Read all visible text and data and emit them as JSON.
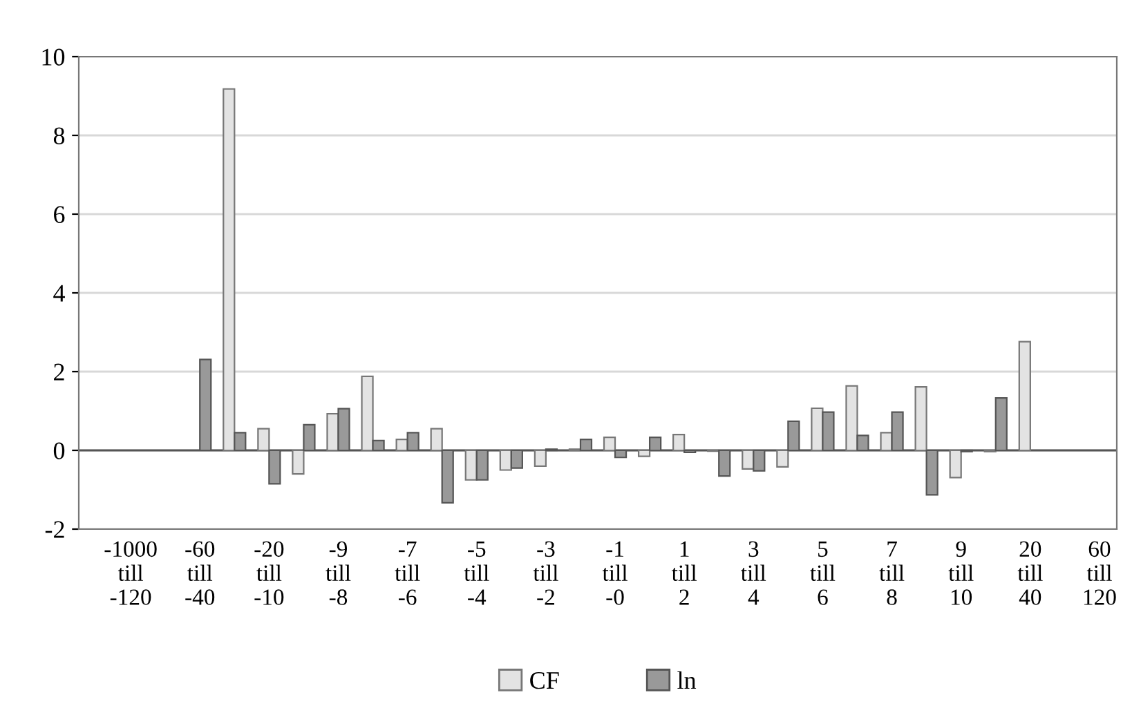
{
  "chart_data": {
    "type": "bar",
    "categories": [
      null,
      "-1000\ntill\n-120",
      null,
      "-60\ntill\n-40",
      null,
      "-20\ntill\n-10",
      null,
      "-9\ntill\n-8",
      null,
      "-7\ntill\n-6",
      null,
      "-5\ntill\n-4",
      null,
      "-3\ntill\n-2",
      null,
      "-1\ntill\n-0",
      null,
      "1\ntill\n2",
      null,
      "3\ntill\n4",
      null,
      "5\ntill\n6",
      null,
      "7\ntill\n8",
      null,
      "9\ntill\n10",
      null,
      "20\ntill\n40",
      null,
      "60\ntill\n120"
    ],
    "series": [
      {
        "name": "CF",
        "color": "#e3e3e3",
        "values": [
          null,
          null,
          null,
          null,
          9.18,
          0.55,
          -0.6,
          0.93,
          1.88,
          0.28,
          0.55,
          -0.75,
          -0.5,
          -0.4,
          0.03,
          0.33,
          -0.15,
          0.4,
          -0.02,
          -0.47,
          -0.42,
          1.07,
          1.64,
          0.45,
          1.61,
          -0.69,
          -0.03,
          2.76,
          null,
          null
        ]
      },
      {
        "name": "ln",
        "color": "#999999",
        "values": [
          null,
          null,
          null,
          2.31,
          0.45,
          -0.85,
          0.65,
          1.06,
          0.25,
          0.45,
          -1.33,
          -0.75,
          -0.45,
          0.03,
          0.28,
          -0.18,
          0.33,
          -0.05,
          -0.65,
          -0.52,
          0.74,
          0.97,
          0.38,
          0.97,
          -1.13,
          -0.03,
          1.33,
          null,
          null,
          null
        ]
      }
    ],
    "ylim": [
      -2,
      10
    ],
    "yticks": [
      -2,
      0,
      2,
      4,
      6,
      8,
      10
    ],
    "grid": "y",
    "legend": "bottom",
    "ref_lines": [
      {
        "axis": "y",
        "value": 0
      }
    ]
  }
}
